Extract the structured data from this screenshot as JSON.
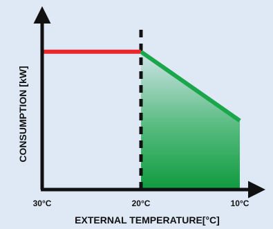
{
  "chart_data": {
    "type": "line",
    "title": "",
    "xlabel": "EXTERNAL TEMPERATURE[°C]",
    "ylabel": "CONSUMPTION [kW]",
    "x_ticks": [
      "30°C",
      "20°C",
      "10°C"
    ],
    "xlim": [
      30,
      10
    ],
    "ylim": [
      0,
      100
    ],
    "threshold_x": 20,
    "series": [
      {
        "color": "#e8262c",
        "points": [
          [
            30,
            80
          ],
          [
            20,
            80
          ]
        ]
      },
      {
        "color": "#1aa64a",
        "points": [
          [
            20,
            80
          ],
          [
            10,
            40
          ]
        ]
      }
    ],
    "area_fill": {
      "color": "#1aa64a",
      "from": 20,
      "to": 10
    },
    "grid": false
  }
}
